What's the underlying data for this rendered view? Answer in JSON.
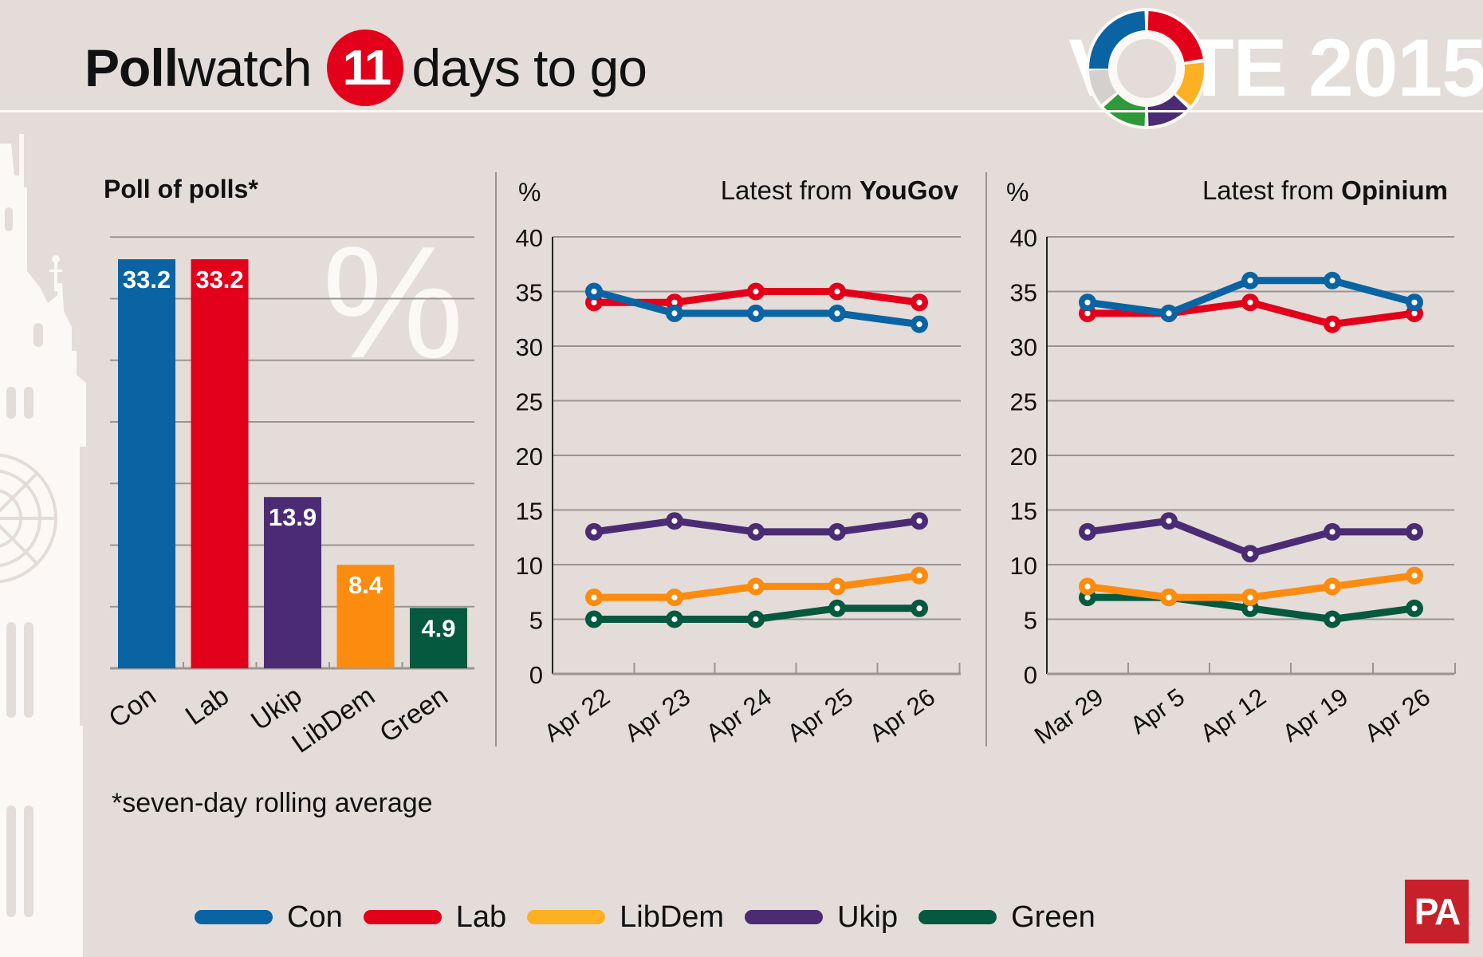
{
  "header": {
    "title_bold": "Poll",
    "title_regular": "watch",
    "days_count": "11",
    "days_suffix": "days to go",
    "brand_logo_text": "VOTE 2015"
  },
  "colors": {
    "Con": "#0a64a4",
    "Lab": "#e2001a",
    "Ukip": "#4b2c74",
    "LibDem": "#fb8c10",
    "Green": "#04593f",
    "legend_LibDem": "#fbb122",
    "background": "#e4dcd8",
    "grid": "#9c9492",
    "pa_red": "#c8202a"
  },
  "chart_data": [
    {
      "type": "bar",
      "title": "Poll of polls*",
      "watermark": "%",
      "categories": [
        "Con",
        "Lab",
        "Ukip",
        "LibDem",
        "Green"
      ],
      "values": [
        33.2,
        33.2,
        13.9,
        8.4,
        4.9
      ],
      "data_labels": [
        "33.2",
        "33.2",
        "13.9",
        "8.4",
        "4.9"
      ],
      "ylim": [
        0,
        35
      ],
      "grid_step": 5,
      "grid": true,
      "xlabel": "",
      "ylabel": "%",
      "footnote": "*seven-day rolling average"
    },
    {
      "type": "line",
      "title_prefix": "Latest from ",
      "title_source": "YouGov",
      "ylabel": "%",
      "ylim": [
        0,
        40
      ],
      "yticks": [
        0,
        5,
        10,
        15,
        20,
        25,
        30,
        35,
        40
      ],
      "grid": true,
      "x": [
        "Apr 22",
        "Apr 23",
        "Apr 24",
        "Apr 25",
        "Apr 26"
      ],
      "series": [
        {
          "name": "Con",
          "values": [
            35,
            33,
            33,
            33,
            32
          ]
        },
        {
          "name": "Lab",
          "values": [
            34,
            34,
            35,
            35,
            34
          ]
        },
        {
          "name": "Ukip",
          "values": [
            13,
            14,
            13,
            13,
            14
          ]
        },
        {
          "name": "LibDem",
          "values": [
            7,
            7,
            8,
            8,
            9
          ]
        },
        {
          "name": "Green",
          "values": [
            5,
            5,
            5,
            6,
            6
          ]
        }
      ]
    },
    {
      "type": "line",
      "title_prefix": "Latest from ",
      "title_source": "Opinium",
      "ylabel": "%",
      "ylim": [
        0,
        40
      ],
      "yticks": [
        0,
        5,
        10,
        15,
        20,
        25,
        30,
        35,
        40
      ],
      "grid": true,
      "x": [
        "Mar 29",
        "Apr 5",
        "Apr 12",
        "Apr 19",
        "Apr 26"
      ],
      "series": [
        {
          "name": "Con",
          "values": [
            34,
            33,
            36,
            36,
            34
          ]
        },
        {
          "name": "Lab",
          "values": [
            33,
            33,
            34,
            32,
            33
          ]
        },
        {
          "name": "Ukip",
          "values": [
            13,
            14,
            11,
            13,
            13
          ]
        },
        {
          "name": "LibDem",
          "values": [
            8,
            7,
            7,
            8,
            9
          ]
        },
        {
          "name": "Green",
          "values": [
            7,
            7,
            6,
            5,
            6
          ]
        }
      ]
    }
  ],
  "legend": {
    "position": "bottom",
    "items": [
      "Con",
      "Lab",
      "LibDem",
      "Ukip",
      "Green"
    ]
  },
  "footer": {
    "publisher_logo": "PA"
  }
}
